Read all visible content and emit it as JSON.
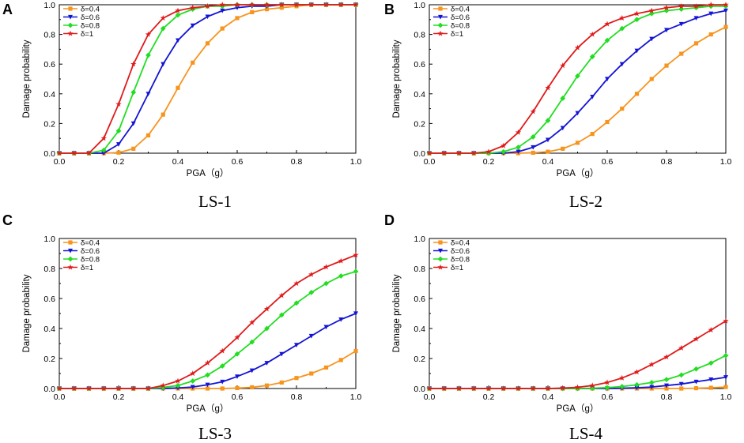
{
  "chart_data": [
    {
      "type": "line",
      "panel_label": "A",
      "caption": "LS-1",
      "xlabel": "PGA（g）",
      "ylabel": "Damage probability",
      "xlim": [
        0,
        1.0
      ],
      "ylim": [
        0,
        1.0
      ],
      "xticks": [
        "0.0",
        "0.2",
        "0.4",
        "0.6",
        "0.8",
        "1.0"
      ],
      "yticks": [
        "0.0",
        "0.2",
        "0.4",
        "0.6",
        "0.8",
        "1.0"
      ],
      "legend_position": "top-left",
      "x": [
        0,
        0.05,
        0.1,
        0.15,
        0.2,
        0.25,
        0.3,
        0.35,
        0.4,
        0.45,
        0.5,
        0.55,
        0.6,
        0.65,
        0.7,
        0.75,
        0.8,
        0.85,
        0.9,
        0.95,
        1.0
      ],
      "series": [
        {
          "name": "δ=0.4",
          "color": "#f7941d",
          "marker": "square",
          "values": [
            0,
            0,
            0,
            0,
            0.004,
            0.03,
            0.12,
            0.26,
            0.44,
            0.61,
            0.74,
            0.84,
            0.91,
            0.95,
            0.97,
            0.98,
            0.99,
            1.0,
            1.0,
            1.0,
            1.0
          ]
        },
        {
          "name": "δ=0.6",
          "color": "#1414d4",
          "marker": "triangle-down",
          "values": [
            0,
            0,
            0,
            0,
            0.06,
            0.2,
            0.4,
            0.6,
            0.76,
            0.86,
            0.92,
            0.96,
            0.98,
            0.99,
            0.99,
            1.0,
            1.0,
            1.0,
            1.0,
            1.0,
            1.0
          ]
        },
        {
          "name": "δ=0.8",
          "color": "#22dd22",
          "marker": "diamond",
          "values": [
            0,
            0,
            0,
            0.02,
            0.15,
            0.41,
            0.66,
            0.84,
            0.93,
            0.97,
            0.99,
            0.99,
            1.0,
            1.0,
            1.0,
            1.0,
            1.0,
            1.0,
            1.0,
            1.0,
            1.0
          ]
        },
        {
          "name": "δ=1",
          "color": "#e01a1a",
          "marker": "star",
          "values": [
            0,
            0,
            0,
            0.1,
            0.33,
            0.6,
            0.8,
            0.91,
            0.96,
            0.98,
            0.99,
            1.0,
            1.0,
            1.0,
            1.0,
            1.0,
            1.0,
            1.0,
            1.0,
            1.0,
            1.0
          ]
        }
      ]
    },
    {
      "type": "line",
      "panel_label": "B",
      "caption": "LS-2",
      "xlabel": "PGA（g）",
      "ylabel": "Damage probability",
      "xlim": [
        0,
        1.0
      ],
      "ylim": [
        0,
        1.0
      ],
      "xticks": [
        "0.0",
        "0.2",
        "0.4",
        "0.6",
        "0.8",
        "1.0"
      ],
      "yticks": [
        "0.0",
        "0.2",
        "0.4",
        "0.6",
        "0.8",
        "1.0"
      ],
      "legend_position": "top-left",
      "x": [
        0,
        0.05,
        0.1,
        0.15,
        0.2,
        0.25,
        0.3,
        0.35,
        0.4,
        0.45,
        0.5,
        0.55,
        0.6,
        0.65,
        0.7,
        0.75,
        0.8,
        0.85,
        0.9,
        0.95,
        1.0
      ],
      "series": [
        {
          "name": "δ=0.4",
          "color": "#f7941d",
          "marker": "square",
          "values": [
            0,
            0,
            0,
            0,
            0,
            0,
            0,
            0.003,
            0.01,
            0.03,
            0.07,
            0.13,
            0.21,
            0.3,
            0.4,
            0.5,
            0.59,
            0.67,
            0.74,
            0.8,
            0.85
          ]
        },
        {
          "name": "δ=0.6",
          "color": "#1414d4",
          "marker": "triangle-down",
          "values": [
            0,
            0,
            0,
            0,
            0,
            0,
            0.01,
            0.04,
            0.09,
            0.17,
            0.27,
            0.38,
            0.5,
            0.6,
            0.69,
            0.77,
            0.83,
            0.87,
            0.91,
            0.94,
            0.96
          ]
        },
        {
          "name": "δ=0.8",
          "color": "#22dd22",
          "marker": "diamond",
          "values": [
            0,
            0,
            0,
            0,
            0,
            0.01,
            0.04,
            0.11,
            0.22,
            0.37,
            0.52,
            0.65,
            0.76,
            0.84,
            0.9,
            0.94,
            0.96,
            0.97,
            0.98,
            0.99,
            0.99
          ]
        },
        {
          "name": "δ=1",
          "color": "#e01a1a",
          "marker": "star",
          "values": [
            0,
            0,
            0,
            0,
            0.01,
            0.05,
            0.14,
            0.28,
            0.44,
            0.59,
            0.71,
            0.8,
            0.87,
            0.91,
            0.94,
            0.96,
            0.98,
            0.99,
            0.99,
            1.0,
            1.0
          ]
        }
      ]
    },
    {
      "type": "line",
      "panel_label": "C",
      "caption": "LS-3",
      "xlabel": "PGA（g）",
      "ylabel": "Damage probability",
      "xlim": [
        0,
        1.0
      ],
      "ylim": [
        0,
        1.0
      ],
      "xticks": [
        "0.0",
        "0.2",
        "0.4",
        "0.6",
        "0.8",
        "1.0"
      ],
      "yticks": [
        "0.0",
        "0.2",
        "0.4",
        "0.6",
        "0.8",
        "1.0"
      ],
      "legend_position": "top-left",
      "x": [
        0,
        0.05,
        0.1,
        0.15,
        0.2,
        0.25,
        0.3,
        0.35,
        0.4,
        0.45,
        0.5,
        0.55,
        0.6,
        0.65,
        0.7,
        0.75,
        0.8,
        0.85,
        0.9,
        0.95,
        1.0
      ],
      "series": [
        {
          "name": "δ=0.4",
          "color": "#f7941d",
          "marker": "square",
          "values": [
            0,
            0,
            0,
            0,
            0,
            0,
            0,
            0,
            0,
            0,
            0,
            0,
            0.003,
            0.008,
            0.02,
            0.04,
            0.07,
            0.1,
            0.14,
            0.19,
            0.25
          ]
        },
        {
          "name": "δ=0.6",
          "color": "#1414d4",
          "marker": "triangle-down",
          "values": [
            0,
            0,
            0,
            0,
            0,
            0,
            0,
            0,
            0.004,
            0.01,
            0.025,
            0.045,
            0.08,
            0.12,
            0.17,
            0.23,
            0.29,
            0.35,
            0.41,
            0.46,
            0.5
          ]
        },
        {
          "name": "δ=0.8",
          "color": "#22dd22",
          "marker": "diamond",
          "values": [
            0,
            0,
            0,
            0,
            0,
            0,
            0,
            0.007,
            0.02,
            0.05,
            0.09,
            0.15,
            0.23,
            0.31,
            0.4,
            0.49,
            0.57,
            0.64,
            0.7,
            0.75,
            0.78
          ]
        },
        {
          "name": "δ=1",
          "color": "#e01a1a",
          "marker": "star",
          "values": [
            0,
            0,
            0,
            0,
            0,
            0,
            0,
            0.02,
            0.05,
            0.1,
            0.17,
            0.25,
            0.34,
            0.44,
            0.53,
            0.62,
            0.7,
            0.76,
            0.81,
            0.85,
            0.89
          ]
        }
      ]
    },
    {
      "type": "line",
      "panel_label": "D",
      "caption": "LS-4",
      "xlabel": "PGA（g）",
      "ylabel": "Damage probability",
      "xlim": [
        0,
        1.0
      ],
      "ylim": [
        0,
        1.0
      ],
      "xticks": [
        "0.0",
        "0.2",
        "0.4",
        "0.6",
        "0.8",
        "1.0"
      ],
      "yticks": [
        "0.0",
        "0.2",
        "0.4",
        "0.6",
        "0.8",
        "1.0"
      ],
      "legend_position": "top-left",
      "x": [
        0,
        0.05,
        0.1,
        0.15,
        0.2,
        0.25,
        0.3,
        0.35,
        0.4,
        0.45,
        0.5,
        0.55,
        0.6,
        0.65,
        0.7,
        0.75,
        0.8,
        0.85,
        0.9,
        0.95,
        1.0
      ],
      "series": [
        {
          "name": "δ=0.4",
          "color": "#f7941d",
          "marker": "square",
          "values": [
            0,
            0,
            0,
            0,
            0,
            0,
            0,
            0,
            0,
            0,
            0,
            0,
            0,
            0,
            0,
            0,
            0,
            0,
            0.002,
            0.005,
            0.01
          ]
        },
        {
          "name": "δ=0.6",
          "color": "#1414d4",
          "marker": "triangle-down",
          "values": [
            0,
            0,
            0,
            0,
            0,
            0,
            0,
            0,
            0,
            0,
            0,
            0,
            0,
            0.002,
            0.005,
            0.01,
            0.02,
            0.03,
            0.045,
            0.06,
            0.075
          ]
        },
        {
          "name": "δ=0.8",
          "color": "#22dd22",
          "marker": "diamond",
          "values": [
            0,
            0,
            0,
            0,
            0,
            0,
            0,
            0,
            0,
            0,
            0,
            0.002,
            0.006,
            0.013,
            0.025,
            0.04,
            0.06,
            0.09,
            0.13,
            0.17,
            0.22
          ]
        },
        {
          "name": "δ=1",
          "color": "#e01a1a",
          "marker": "star",
          "values": [
            0,
            0,
            0,
            0,
            0,
            0,
            0,
            0,
            0,
            0.003,
            0.008,
            0.02,
            0.04,
            0.07,
            0.11,
            0.16,
            0.21,
            0.27,
            0.33,
            0.39,
            0.45
          ]
        }
      ]
    }
  ]
}
